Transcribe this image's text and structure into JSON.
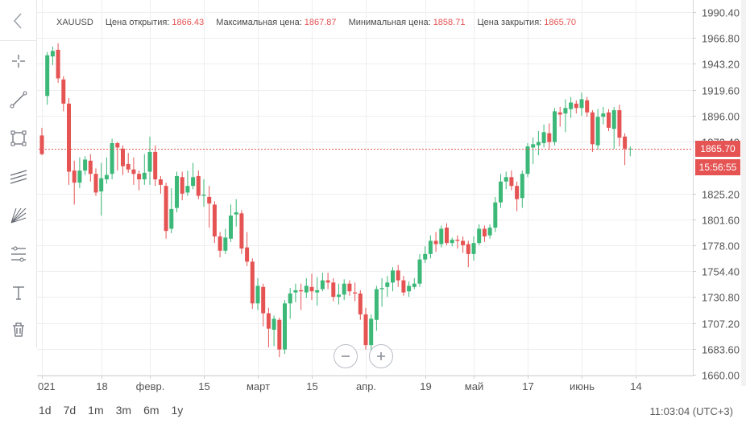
{
  "legend": {
    "symbol": "XAUUSD",
    "open_label": "Цена открытия:",
    "open_value": "1866.43",
    "high_label": "Максимальная цена:",
    "high_value": "1867.87",
    "low_label": "Минимальная цена:",
    "low_value": "1858.71",
    "close_label": "Цена закрытия:",
    "close_value": "1865.70"
  },
  "price_tags": {
    "last_price": "1865.70",
    "countdown": "15:56:55"
  },
  "periods": [
    "1d",
    "7d",
    "1m",
    "3m",
    "6m",
    "1y"
  ],
  "clock": "11:03:04 (UTC+3)",
  "toolbar_icons": [
    "back-arrow-icon",
    "crosshair-icon",
    "trend-line-icon",
    "rectangle-icon",
    "parallel-channel-icon",
    "fib-fan-icon",
    "fib-retracement-icon",
    "text-icon",
    "trash-icon"
  ],
  "colors": {
    "up": "#3cb878",
    "down": "#e55353",
    "grid": "#eeeeee",
    "axis_text": "#555555"
  },
  "chart_data": {
    "type": "candlestick",
    "symbol": "XAUUSD",
    "period": "daily",
    "ylim": [
      1660.0,
      1990.4
    ],
    "y_ticks": [
      1660.0,
      1683.6,
      1707.2,
      1730.8,
      1754.4,
      1778.0,
      1801.6,
      1825.2,
      1872.4,
      1896.0,
      1919.6,
      1943.2,
      1966.8,
      1990.4
    ],
    "y_tick_labels": [
      "1660.00",
      "1683.60",
      "1707.20",
      "1730.80",
      "1754.40",
      "1778.00",
      "1801.60",
      "1825.20",
      "1872.40",
      "1896.00",
      "1919.60",
      "1943.20",
      "1966.80",
      "1990.40"
    ],
    "x_labels": [
      "021",
      "18",
      "февр.",
      "15",
      "март",
      "15",
      "апр.",
      "19",
      "май",
      "17",
      "июнь",
      "14"
    ],
    "x_label_index": [
      0,
      11,
      20,
      30,
      40,
      50,
      60,
      71,
      80,
      90,
      100,
      110
    ],
    "candles": [
      [
        1878,
        1861,
        1885,
        1860
      ],
      [
        1914,
        1951,
        1954,
        1906
      ],
      [
        1950,
        1955,
        1959,
        1942
      ],
      [
        1956,
        1930,
        1962,
        1926
      ],
      [
        1929,
        1907,
        1932,
        1900
      ],
      [
        1907,
        1845,
        1912,
        1833
      ],
      [
        1846,
        1835,
        1855,
        1815
      ],
      [
        1835,
        1846,
        1858,
        1830
      ],
      [
        1846,
        1856,
        1859,
        1842
      ],
      [
        1855,
        1843,
        1861,
        1836
      ],
      [
        1843,
        1826,
        1848,
        1823
      ],
      [
        1827,
        1839,
        1853,
        1805
      ],
      [
        1838,
        1842,
        1858,
        1834
      ],
      [
        1843,
        1871,
        1875,
        1838
      ],
      [
        1871,
        1867,
        1872,
        1846
      ],
      [
        1866,
        1850,
        1869,
        1842
      ],
      [
        1852,
        1847,
        1862,
        1844
      ],
      [
        1847,
        1843,
        1858,
        1833
      ],
      [
        1843,
        1838,
        1846,
        1828
      ],
      [
        1838,
        1844,
        1861,
        1833
      ],
      [
        1845,
        1863,
        1877,
        1833
      ],
      [
        1863,
        1838,
        1869,
        1832
      ],
      [
        1838,
        1833,
        1841,
        1825
      ],
      [
        1832,
        1791,
        1835,
        1784
      ],
      [
        1793,
        1811,
        1830,
        1789
      ],
      [
        1812,
        1841,
        1845,
        1808
      ],
      [
        1840,
        1825,
        1845,
        1819
      ],
      [
        1826,
        1832,
        1846,
        1823
      ],
      [
        1832,
        1840,
        1853,
        1829
      ],
      [
        1841,
        1823,
        1846,
        1820
      ],
      [
        1823,
        1824,
        1838,
        1813
      ],
      [
        1822,
        1816,
        1832,
        1794
      ],
      [
        1815,
        1786,
        1818,
        1780
      ],
      [
        1786,
        1773,
        1790,
        1767
      ],
      [
        1773,
        1785,
        1793,
        1770
      ],
      [
        1784,
        1805,
        1815,
        1781
      ],
      [
        1806,
        1808,
        1820,
        1795
      ],
      [
        1807,
        1775,
        1810,
        1770
      ],
      [
        1776,
        1763,
        1790,
        1759
      ],
      [
        1763,
        1725,
        1766,
        1720
      ],
      [
        1725,
        1741,
        1748,
        1719
      ],
      [
        1740,
        1716,
        1743,
        1704
      ],
      [
        1716,
        1702,
        1721,
        1685
      ],
      [
        1701,
        1711,
        1714,
        1686
      ],
      [
        1710,
        1683,
        1712,
        1676
      ],
      [
        1683,
        1725,
        1728,
        1679
      ],
      [
        1725,
        1734,
        1739,
        1711
      ],
      [
        1735,
        1737,
        1743,
        1726
      ],
      [
        1737,
        1736,
        1743,
        1719
      ],
      [
        1735,
        1741,
        1748,
        1730
      ],
      [
        1740,
        1736,
        1752,
        1728
      ],
      [
        1735,
        1737,
        1749,
        1723
      ],
      [
        1738,
        1746,
        1753,
        1736
      ],
      [
        1746,
        1744,
        1753,
        1738
      ],
      [
        1744,
        1731,
        1748,
        1727
      ],
      [
        1731,
        1733,
        1743,
        1724
      ],
      [
        1733,
        1743,
        1747,
        1728
      ],
      [
        1743,
        1736,
        1746,
        1732
      ],
      [
        1735,
        1734,
        1744,
        1727
      ],
      [
        1734,
        1715,
        1737,
        1710
      ],
      [
        1715,
        1687,
        1721,
        1683
      ],
      [
        1687,
        1711,
        1715,
        1681
      ],
      [
        1710,
        1738,
        1741,
        1700
      ],
      [
        1738,
        1739,
        1748,
        1722
      ],
      [
        1740,
        1744,
        1750,
        1731
      ],
      [
        1744,
        1755,
        1758,
        1736
      ],
      [
        1755,
        1746,
        1760,
        1740
      ],
      [
        1746,
        1735,
        1750,
        1732
      ],
      [
        1736,
        1741,
        1745,
        1731
      ],
      [
        1740,
        1743,
        1748,
        1738
      ],
      [
        1743,
        1765,
        1770,
        1740
      ],
      [
        1765,
        1770,
        1777,
        1762
      ],
      [
        1770,
        1782,
        1787,
        1766
      ],
      [
        1782,
        1779,
        1790,
        1772
      ],
      [
        1779,
        1793,
        1796,
        1776
      ],
      [
        1794,
        1780,
        1798,
        1778
      ],
      [
        1780,
        1783,
        1785,
        1777
      ],
      [
        1783,
        1782,
        1787,
        1775
      ],
      [
        1782,
        1778,
        1786,
        1771
      ],
      [
        1779,
        1770,
        1782,
        1758
      ],
      [
        1770,
        1780,
        1786,
        1764
      ],
      [
        1780,
        1793,
        1797,
        1778
      ],
      [
        1793,
        1786,
        1796,
        1781
      ],
      [
        1787,
        1794,
        1797,
        1784
      ],
      [
        1794,
        1817,
        1822,
        1790
      ],
      [
        1817,
        1836,
        1843,
        1812
      ],
      [
        1836,
        1840,
        1845,
        1829
      ],
      [
        1840,
        1832,
        1846,
        1828
      ],
      [
        1832,
        1820,
        1836,
        1809
      ],
      [
        1821,
        1843,
        1846,
        1812
      ],
      [
        1843,
        1868,
        1871,
        1840
      ],
      [
        1867,
        1870,
        1876,
        1852
      ],
      [
        1869,
        1872,
        1882,
        1860
      ],
      [
        1871,
        1881,
        1888,
        1867
      ],
      [
        1880,
        1872,
        1889,
        1865
      ],
      [
        1872,
        1900,
        1903,
        1869
      ],
      [
        1899,
        1897,
        1904,
        1886
      ],
      [
        1898,
        1903,
        1911,
        1881
      ],
      [
        1902,
        1908,
        1913,
        1894
      ],
      [
        1907,
        1903,
        1910,
        1898
      ],
      [
        1903,
        1911,
        1917,
        1896
      ],
      [
        1910,
        1899,
        1913,
        1895
      ],
      [
        1899,
        1870,
        1901,
        1863
      ],
      [
        1869,
        1895,
        1902,
        1865
      ],
      [
        1895,
        1898,
        1904,
        1888
      ],
      [
        1899,
        1885,
        1902,
        1882
      ],
      [
        1884,
        1901,
        1904,
        1866
      ],
      [
        1901,
        1876,
        1906,
        1868
      ],
      [
        1877,
        1866,
        1880,
        1851
      ],
      [
        1866,
        1866,
        1868,
        1859
      ]
    ]
  }
}
